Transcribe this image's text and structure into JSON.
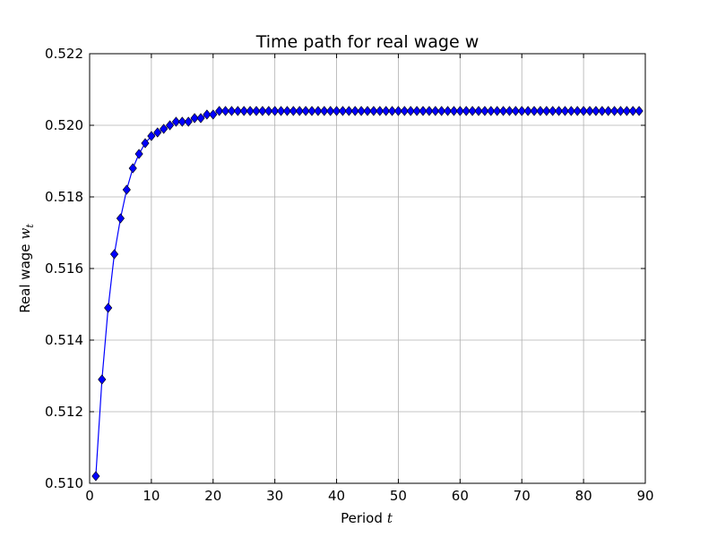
{
  "chart_data": {
    "type": "line",
    "title": "Time path for real wage w",
    "xlabel": "Period",
    "xlabel_var": "t",
    "ylabel": "Real wage",
    "ylabel_var": "w",
    "ylabel_sub": "t",
    "xlim": [
      0,
      90
    ],
    "ylim": [
      0.51,
      0.522
    ],
    "xticks": [
      0,
      10,
      20,
      30,
      40,
      50,
      60,
      70,
      80,
      90
    ],
    "xtick_labels": [
      "0",
      "10",
      "20",
      "30",
      "40",
      "50",
      "60",
      "70",
      "80",
      "90"
    ],
    "yticks": [
      0.51,
      0.512,
      0.514,
      0.516,
      0.518,
      0.52,
      0.522
    ],
    "ytick_labels": [
      "0.510",
      "0.512",
      "0.514",
      "0.516",
      "0.518",
      "0.520",
      "0.522"
    ],
    "grid": true,
    "marker": "diamond",
    "line_color": "#0000ff",
    "marker_color": "#0000ff",
    "series": [
      {
        "x": [
          1,
          2,
          3,
          4,
          5,
          6,
          7,
          8,
          9,
          10,
          11,
          12,
          13,
          14,
          15,
          16,
          17,
          18,
          19,
          20,
          21,
          22,
          23,
          24,
          25,
          26,
          27,
          28,
          29,
          30,
          31,
          32,
          33,
          34,
          35,
          36,
          37,
          38,
          39,
          40,
          41,
          42,
          43,
          44,
          45,
          46,
          47,
          48,
          49,
          50,
          51,
          52,
          53,
          54,
          55,
          56,
          57,
          58,
          59,
          60,
          61,
          62,
          63,
          64,
          65,
          66,
          67,
          68,
          69,
          70,
          71,
          72,
          73,
          74,
          75,
          76,
          77,
          78,
          79,
          80,
          81,
          82,
          83,
          84,
          85,
          86,
          87,
          88,
          89
        ],
        "values": [
          0.5102,
          0.5129,
          0.5149,
          0.5164,
          0.5174,
          0.5182,
          0.5188,
          0.5192,
          0.5195,
          0.5197,
          0.5198,
          0.5199,
          0.52,
          0.5201,
          0.5201,
          0.5201,
          0.5202,
          0.5202,
          0.5203,
          0.5203,
          0.5204,
          0.5204,
          0.5204,
          0.5204,
          0.5204,
          0.5204,
          0.5204,
          0.5204,
          0.5204,
          0.5204,
          0.5204,
          0.5204,
          0.5204,
          0.5204,
          0.5204,
          0.5204,
          0.5204,
          0.5204,
          0.5204,
          0.5204,
          0.5204,
          0.5204,
          0.5204,
          0.5204,
          0.5204,
          0.5204,
          0.5204,
          0.5204,
          0.5204,
          0.5204,
          0.5204,
          0.5204,
          0.5204,
          0.5204,
          0.5204,
          0.5204,
          0.5204,
          0.5204,
          0.5204,
          0.5204,
          0.5204,
          0.5204,
          0.5204,
          0.5204,
          0.5204,
          0.5204,
          0.5204,
          0.5204,
          0.5204,
          0.5204,
          0.5204,
          0.5204,
          0.5204,
          0.5204,
          0.5204,
          0.5204,
          0.5204,
          0.5204,
          0.5204,
          0.5204,
          0.5204,
          0.5204,
          0.5204,
          0.5204,
          0.5204,
          0.5204,
          0.5204,
          0.5204,
          0.5204
        ]
      }
    ]
  }
}
